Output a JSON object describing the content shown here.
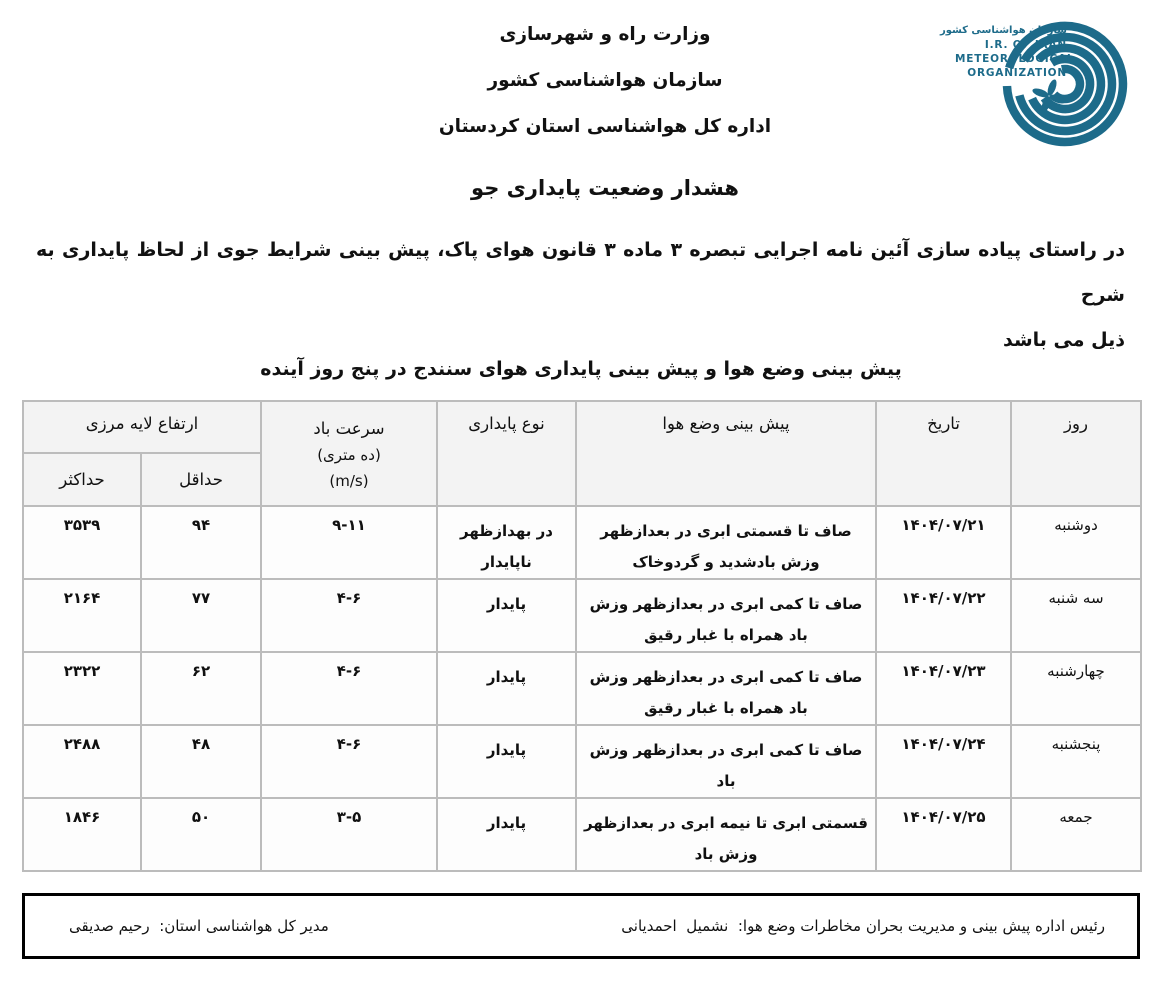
{
  "letterhead": {
    "line1": "وزارت راه و شهرسازی",
    "line2": "سازمان هواشناسی کشور",
    "line3": "اداره کل هواشناسی استان کردستان",
    "logo": {
      "color": "#1d6b8a",
      "fa": "سازمان هواشناسی کشور",
      "en1": "I.R. OF IRAN",
      "en2": "METEOROLOGICAL",
      "en3": "ORGANIZATION"
    }
  },
  "document": {
    "title": "هشدار وضعیت پایداری جو"
  },
  "intro": {
    "line1": "در راستای پیاده سازی آئین نامه اجرایی تبصره ۳ ماده ۳ قانون هوای پاک، پیش بینی شرایط جوی از لحاظ پایداری به شرح",
    "line2": "ذیل می باشد"
  },
  "table": {
    "title": "پیش بینی وضع هوا و پیش بینی پایداری هوای سنندج در پنج روز آینده",
    "headers": {
      "day": "روز",
      "date": "تاریخ",
      "forecast": "پیش بینی وضع هوا",
      "stability": "نوع پایداری",
      "wind_line1": "سرعت باد",
      "wind_line2": "(ده متری)",
      "wind_line3": "(m/s)",
      "boundary_layer": "ارتفاع لایه مرزی",
      "min": "حداقل",
      "max": "حداکثر"
    },
    "rows": [
      {
        "day": "دوشنبه",
        "date": "۱۴۰۴/۰۷/۲۱",
        "forecast": "صاف تا قسمتی ابری در بعدازظهر وزش بادشدید و گردوخاک",
        "stability": "در بهدازظهر ناپایدار",
        "wind": "۹-۱۱",
        "min": "۹۴",
        "max": "۳۵۳۹"
      },
      {
        "day": "سه شنبه",
        "date": "۱۴۰۴/۰۷/۲۲",
        "forecast": "صاف تا کمی ابری در بعدازظهر وزش باد همراه با غبار رقیق",
        "stability": "پایدار",
        "wind": "۴-۶",
        "min": "۷۷",
        "max": "۲۱۶۴"
      },
      {
        "day": "چهارشنبه",
        "date": "۱۴۰۴/۰۷/۲۳",
        "forecast": "صاف تا کمی ابری در بعدازظهر وزش باد همراه با غبار رقیق",
        "stability": "پایدار",
        "wind": "۴-۶",
        "min": "۶۲",
        "max": "۲۳۲۲"
      },
      {
        "day": "پنجشنبه",
        "date": "۱۴۰۴/۰۷/۲۴",
        "forecast": "صاف تا کمی ابری در بعدازظهر وزش باد",
        "stability": "پایدار",
        "wind": "۴-۶",
        "min": "۴۸",
        "max": "۲۴۸۸"
      },
      {
        "day": "جمعه",
        "date": "۱۴۰۴/۰۷/۲۵",
        "forecast": "قسمتی ابری تا نیمه ابری در بعدازظهر وزش باد",
        "stability": "پایدار",
        "wind": "۳-۵",
        "min": "۵۰",
        "max": "۱۸۴۶"
      }
    ]
  },
  "signatures": {
    "right": "رئیس اداره پیش بینی و مدیریت بحران مخاطرات وضع هوا:  نشمیل  احمدیانی",
    "left": "مدیر کل هواشناسی استان:  رحیم صدیقی"
  }
}
